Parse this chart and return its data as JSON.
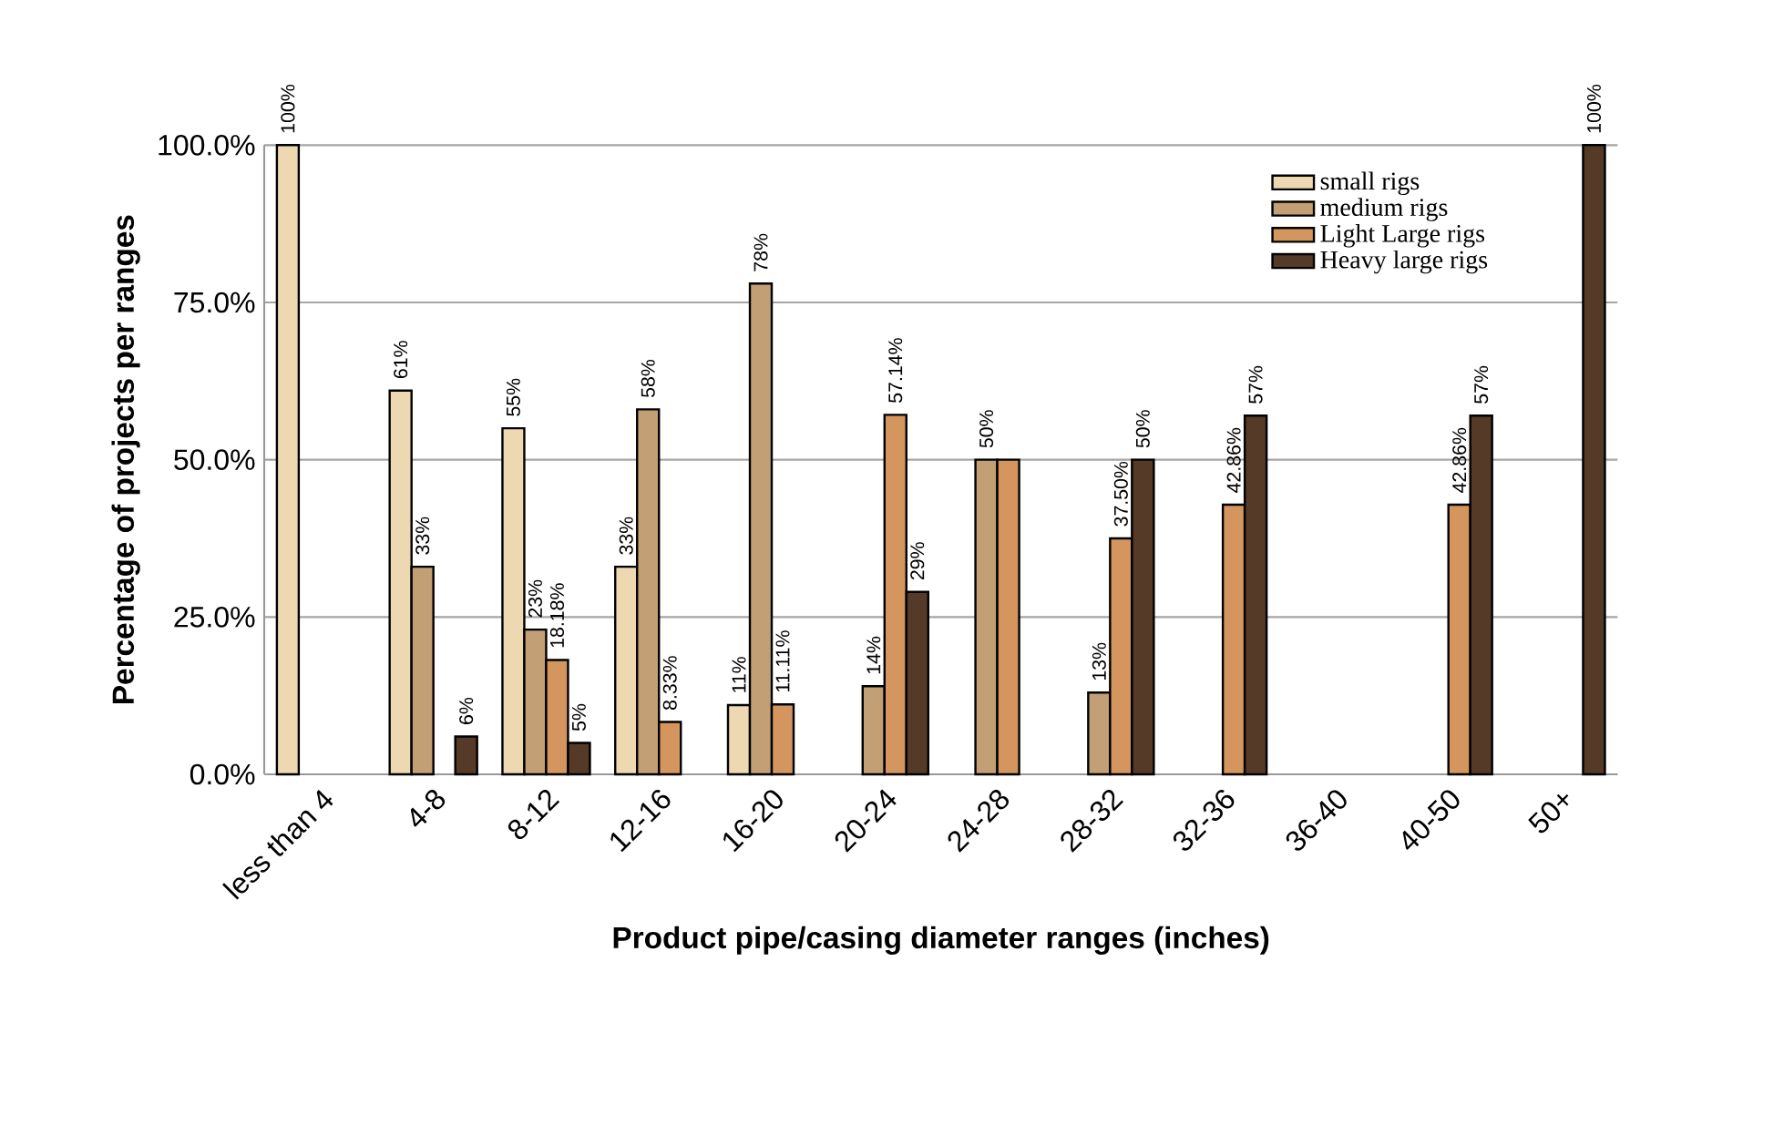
{
  "chart_data": {
    "type": "bar",
    "categories": [
      "less than 4",
      "4-8",
      "8-12",
      "12-16",
      "16-20",
      "20-24",
      "24-28",
      "28-32",
      "32-36",
      "36-40",
      "40-50",
      "50+"
    ],
    "series": [
      {
        "name": "small rigs",
        "color": "#eed8b2",
        "values": [
          100,
          61,
          55,
          33,
          11,
          null,
          null,
          null,
          null,
          null,
          null,
          null
        ],
        "value_labels": [
          "100%",
          "61%",
          "55%",
          "33%",
          "11%",
          null,
          null,
          null,
          null,
          null,
          null,
          null
        ]
      },
      {
        "name": "medium rigs",
        "color": "#c29f74",
        "values": [
          null,
          33,
          23,
          58,
          78,
          14,
          50,
          13,
          null,
          null,
          null,
          null
        ],
        "value_labels": [
          null,
          "33%",
          "23%",
          "58%",
          "78%",
          "14%",
          "50%",
          "13%",
          null,
          null,
          null,
          null
        ]
      },
      {
        "name": "Light Large rigs",
        "color": "#d4955e",
        "values": [
          null,
          null,
          18.18,
          8.33,
          11.11,
          57.14,
          50,
          37.5,
          42.86,
          null,
          42.86,
          null
        ],
        "value_labels": [
          null,
          null,
          "18.18%",
          "8.33%",
          "11.11%",
          "57.14%",
          null,
          "37.50%",
          "42.86%",
          null,
          "42.86%",
          null
        ]
      },
      {
        "name": "Heavy large rigs",
        "color": "#553a28",
        "values": [
          null,
          6,
          5,
          null,
          null,
          29,
          null,
          50,
          57,
          null,
          57,
          100
        ],
        "value_labels": [
          null,
          "6%",
          "5%",
          null,
          null,
          "29%",
          null,
          "50%",
          "57%",
          null,
          "57%",
          "100%"
        ]
      }
    ],
    "xlabel": "Product pipe/casing diameter ranges (inches)",
    "ylabel": "Percentage of projects per ranges",
    "ylim": [
      0,
      100
    ],
    "yticks": [
      {
        "value": 0,
        "label": "0.0%"
      },
      {
        "value": 25,
        "label": "25.0%"
      },
      {
        "value": 50,
        "label": "50.0%"
      },
      {
        "value": 75,
        "label": "75.0%"
      },
      {
        "value": 100,
        "label": "100.0%"
      }
    ],
    "grid": "y",
    "legend": "top right"
  }
}
